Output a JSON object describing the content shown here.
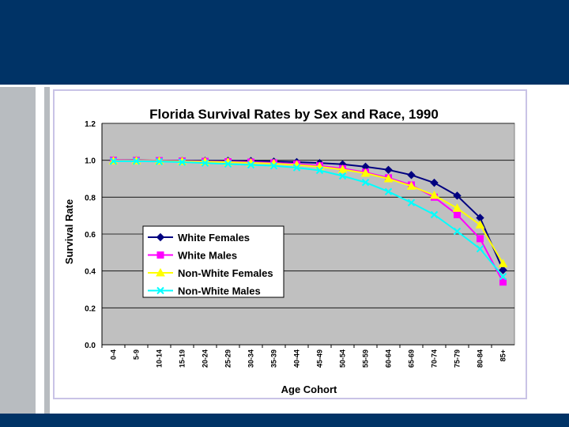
{
  "chart_data": {
    "type": "line",
    "title": "Florida Survival Rates by Sex and Race, 1990",
    "xlabel": "Age Cohort",
    "ylabel": "Survival Rate",
    "ylim": [
      0,
      1.2
    ],
    "yticks": [
      "0.0",
      "0.2",
      "0.4",
      "0.6",
      "0.8",
      "1.0",
      "1.2"
    ],
    "grid": true,
    "legend_position": "center-left",
    "categories": [
      "0-4",
      "5-9",
      "10-14",
      "15-19",
      "20-24",
      "25-29",
      "30-34",
      "35-39",
      "40-44",
      "45-49",
      "50-54",
      "55-59",
      "60-64",
      "65-69",
      "70-74",
      "75-79",
      "80-84",
      "85+"
    ],
    "series": [
      {
        "name": "White Females",
        "color": "#000080",
        "marker": "diamond",
        "values": [
          1.0,
          1.0,
          0.998,
          0.997,
          0.997,
          0.997,
          0.996,
          0.993,
          0.99,
          0.985,
          0.978,
          0.965,
          0.948,
          0.92,
          0.878,
          0.808,
          0.688,
          0.405
        ]
      },
      {
        "name": "White Males",
        "color": "#ff00ff",
        "marker": "square",
        "values": [
          1.0,
          0.999,
          0.998,
          0.996,
          0.994,
          0.992,
          0.99,
          0.986,
          0.98,
          0.97,
          0.955,
          0.935,
          0.905,
          0.866,
          0.8,
          0.705,
          0.575,
          0.34
        ]
      },
      {
        "name": "Non-White Females",
        "color": "#ffff00",
        "marker": "triangle",
        "values": [
          0.997,
          0.997,
          0.996,
          0.994,
          0.992,
          0.99,
          0.986,
          0.982,
          0.975,
          0.965,
          0.95,
          0.93,
          0.9,
          0.86,
          0.81,
          0.74,
          0.65,
          0.44
        ]
      },
      {
        "name": "Non-White Males",
        "color": "#00ffff",
        "marker": "x",
        "values": [
          0.995,
          0.995,
          0.993,
          0.99,
          0.985,
          0.98,
          0.975,
          0.97,
          0.96,
          0.945,
          0.915,
          0.88,
          0.83,
          0.77,
          0.705,
          0.615,
          0.52,
          0.37
        ]
      }
    ]
  }
}
